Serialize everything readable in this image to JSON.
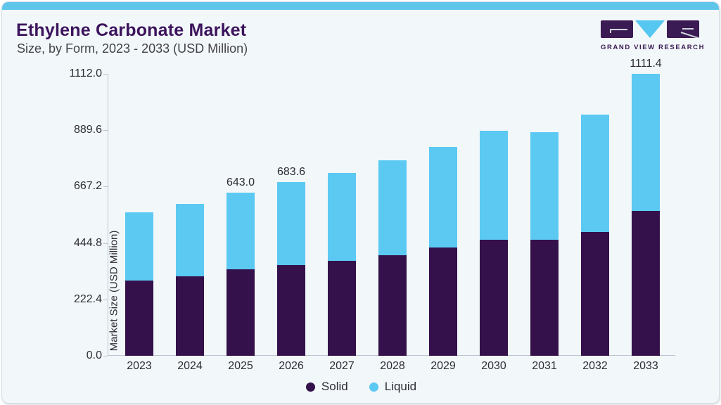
{
  "header": {
    "title": "Ethylene Carbonate Market",
    "subtitle": "Size, by Form, 2023 - 2033 (USD Million)"
  },
  "logo": {
    "name": "Grand View Research logo",
    "text": "GRAND VIEW RESEARCH"
  },
  "chart_data": {
    "type": "bar",
    "stacked": true,
    "title": "Ethylene Carbonate Market Size, by Form, 2023 - 2033 (USD Million)",
    "categories": [
      "2023",
      "2024",
      "2025",
      "2026",
      "2027",
      "2028",
      "2029",
      "2030",
      "2031",
      "2032",
      "2033"
    ],
    "series": [
      {
        "name": "Solid",
        "color": "#34114a",
        "values": [
          297.8,
          312.7,
          339.8,
          358.8,
          375.0,
          396.6,
          426.4,
          458.8,
          456.2,
          488.6,
          571.0
        ]
      },
      {
        "name": "Liquid",
        "color": "#5bc9f2",
        "values": [
          266.6,
          287.1,
          303.2,
          324.8,
          346.4,
          373.5,
          397.9,
          427.7,
          424.9,
          462.9,
          540.4
        ]
      }
    ],
    "totals": [
      564.4,
      599.8,
      643.0,
      683.6,
      721.4,
      770.1,
      824.3,
      886.5,
      881.1,
      951.5,
      1111.4
    ],
    "point_labels": [
      {
        "category": "2025",
        "text": "643.0"
      },
      {
        "category": "2026",
        "text": "683.6"
      },
      {
        "category": "2033",
        "text": "1111.4"
      }
    ],
    "xlabel": "",
    "ylabel": "Market Size (USD Million)",
    "ylim": [
      0,
      1112.0
    ],
    "yticks": [
      0,
      222.4,
      444.8,
      667.2,
      889.6,
      1112.0
    ],
    "ytick_labels": [
      "0.0",
      "222.4",
      "444.8",
      "667.2",
      "889.6",
      "1112.0"
    ],
    "grid": false,
    "legend_position": "bottom"
  },
  "colors": {
    "card_background": "#f2f7fa",
    "top_strip": "#5ec6ea",
    "title_text": "#3c135c",
    "subtitle_text": "#43434b",
    "axis_line": "#bcc5cf",
    "axis_text": "#2d2d35",
    "solid_bar": "#34114a",
    "liquid_bar": "#5bc9f2"
  }
}
